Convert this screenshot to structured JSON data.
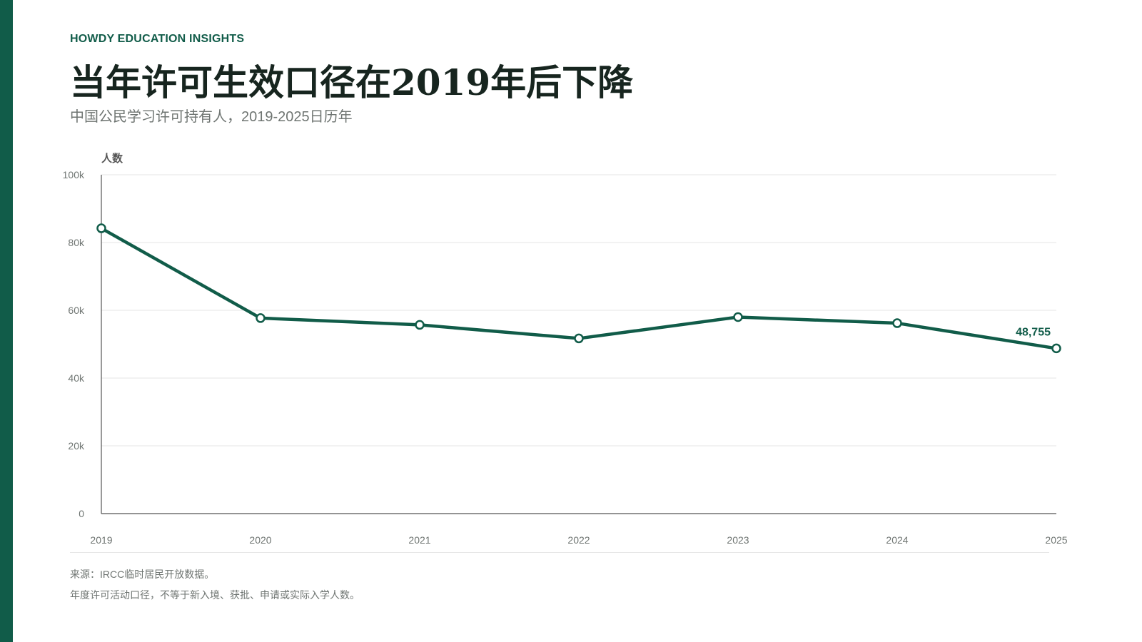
{
  "header": {
    "eyebrow": "HOWDY EDUCATION INSIGHTS",
    "title": "当年许可生效口径在2019年后下降",
    "subtitle": "中国公民学习许可持有人，2019-2025日历年"
  },
  "footer": {
    "source": "来源：IRCC临时居民开放数据。",
    "caveat": "年度许可活动口径，不等于新入境、获批、申请或实际入学人数。"
  },
  "colors": {
    "accent": "#115c49",
    "grid": "#e6e6e6",
    "axis": "#555555",
    "tick_text": "#6f7572",
    "label_text": "#555555"
  },
  "chart_data": {
    "type": "line",
    "title": "当年许可生效口径在2019年后下降",
    "subtitle": "中国公民学习许可持有人，2019-2025日历年",
    "xlabel": "",
    "ylabel": "人数",
    "categories": [
      "2019",
      "2020",
      "2021",
      "2022",
      "2023",
      "2024",
      "2025"
    ],
    "series": [
      {
        "values": [
          84200,
          57700,
          55700,
          51700,
          58000,
          56200,
          48755
        ]
      }
    ],
    "ylim": [
      0,
      100000
    ],
    "yticks": [
      0,
      20000,
      40000,
      60000,
      80000,
      100000
    ],
    "ytick_labels": [
      "0",
      "20k",
      "40k",
      "60k",
      "80k",
      "100k"
    ],
    "annotations": [
      {
        "category": "2025",
        "text": "48,755"
      }
    ],
    "grid": true,
    "legend": "none"
  }
}
